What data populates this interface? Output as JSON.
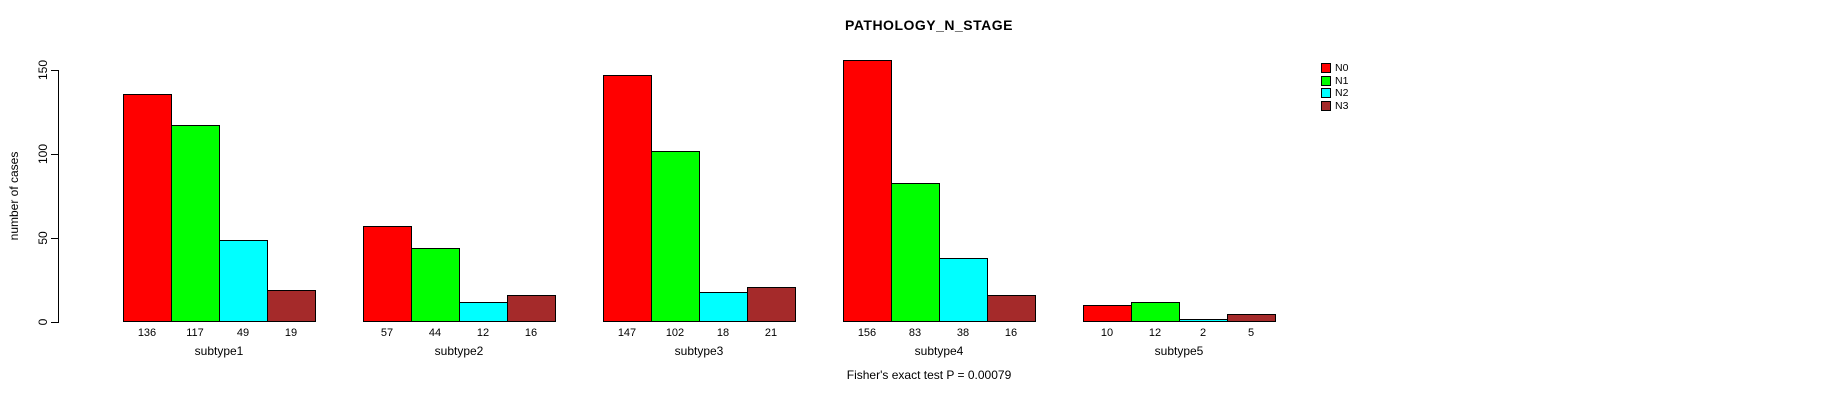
{
  "chart_data": {
    "type": "bar",
    "title": "PATHOLOGY_N_STAGE",
    "ylabel": "number of cases",
    "xlabel": "",
    "categories": [
      "subtype1",
      "subtype2",
      "subtype3",
      "subtype4",
      "subtype5"
    ],
    "series": [
      {
        "name": "N0",
        "color": "#FF0000",
        "values": [
          136,
          57,
          147,
          156,
          10
        ]
      },
      {
        "name": "N1",
        "color": "#00FF00",
        "values": [
          117,
          44,
          102,
          83,
          12
        ]
      },
      {
        "name": "N2",
        "color": "#00FFFF",
        "values": [
          49,
          12,
          18,
          38,
          2
        ]
      },
      {
        "name": "N3",
        "color": "#A52A2A",
        "values": [
          19,
          16,
          21,
          16,
          5
        ]
      }
    ],
    "yticks": [
      0,
      50,
      100,
      150
    ],
    "ylim": [
      0,
      160
    ],
    "grid": false,
    "legend_position": "top-right",
    "value_labels_shown": true,
    "annotation": "Fisher's exact test P = 0.00079"
  }
}
